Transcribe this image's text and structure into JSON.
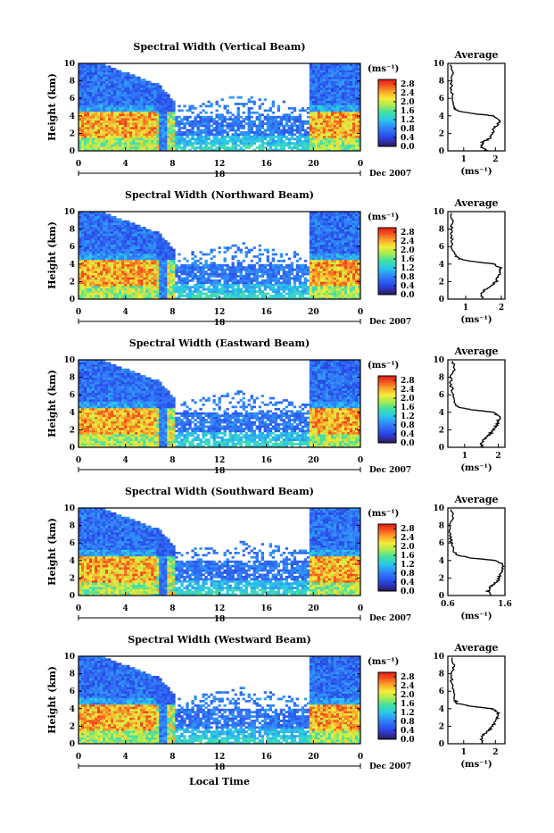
{
  "figure": {
    "xlabel": "Local Time",
    "colorbar_unit": "(ms⁻¹)",
    "average_title": "Average",
    "date_label": "Dec 2007",
    "day_marker": "18"
  },
  "chart_data": [
    {
      "type": "heatmap",
      "title": "Spectral Width (Vertical Beam)",
      "xlabel": "",
      "ylabel": "Height (km)",
      "x_ticks": [
        "0",
        "4",
        "8",
        "12",
        "16",
        "20",
        "0"
      ],
      "xlim": [
        0,
        24
      ],
      "y_ticks": [
        "0",
        "2",
        "4",
        "6",
        "8",
        "10"
      ],
      "ylim": [
        0,
        10
      ],
      "colorbar": {
        "ticks": [
          "0.0",
          "0.4",
          "0.8",
          "1.2",
          "1.6",
          "2.0",
          "2.4",
          "2.8"
        ],
        "range": [
          0,
          3.0
        ]
      },
      "profile": {
        "title": "Average",
        "xlabel": "(ms⁻¹)",
        "x_ticks": [
          "1",
          "2"
        ],
        "xlim": [
          0.5,
          2.3
        ],
        "y_ticks": [
          "0",
          "2",
          "4",
          "6",
          "8",
          "10"
        ],
        "heights": [
          0,
          0.5,
          1,
          1.5,
          2,
          2.5,
          3,
          3.5,
          4,
          4.3,
          4.6,
          5,
          6,
          7,
          8,
          9,
          10
        ],
        "values": [
          1.75,
          1.55,
          1.6,
          1.85,
          1.9,
          1.95,
          2.05,
          2.15,
          1.95,
          1.2,
          0.8,
          0.7,
          0.65,
          0.6,
          0.62,
          0.68,
          0.6
        ]
      }
    },
    {
      "type": "heatmap",
      "title": "Spectral Width (Northward Beam)",
      "xlabel": "",
      "ylabel": "Height (km)",
      "x_ticks": [
        "0",
        "4",
        "8",
        "12",
        "16",
        "20",
        "0"
      ],
      "xlim": [
        0,
        24
      ],
      "y_ticks": [
        "0",
        "2",
        "4",
        "6",
        "8",
        "10"
      ],
      "ylim": [
        0,
        10
      ],
      "colorbar": {
        "ticks": [
          "0.0",
          "0.4",
          "0.8",
          "1.2",
          "1.6",
          "2.0",
          "2.4",
          "2.8"
        ],
        "range": [
          0,
          3.0
        ]
      },
      "profile": {
        "title": "Average",
        "xlabel": "(ms⁻¹)",
        "x_ticks": [
          "1",
          "2"
        ],
        "xlim": [
          0.5,
          2.1
        ],
        "y_ticks": [
          "0",
          "2",
          "4",
          "6",
          "8",
          "10"
        ],
        "heights": [
          0,
          0.5,
          1,
          1.5,
          2,
          2.5,
          3,
          3.5,
          4,
          4.3,
          4.6,
          5,
          6,
          7,
          8,
          9,
          10
        ],
        "values": [
          1.5,
          1.45,
          1.5,
          1.7,
          1.85,
          1.9,
          1.95,
          2.0,
          1.8,
          1.2,
          0.8,
          0.7,
          0.62,
          0.6,
          0.6,
          0.62,
          0.6
        ]
      }
    },
    {
      "type": "heatmap",
      "title": "Spectral Width (Eastward Beam)",
      "xlabel": "",
      "ylabel": "Height (km)",
      "x_ticks": [
        "0",
        "4",
        "8",
        "12",
        "16",
        "20",
        "0"
      ],
      "xlim": [
        0,
        24
      ],
      "y_ticks": [
        "0",
        "2",
        "4",
        "6",
        "8",
        "10"
      ],
      "ylim": [
        0,
        10
      ],
      "colorbar": {
        "ticks": [
          "0.0",
          "0.4",
          "0.8",
          "1.2",
          "1.6",
          "2.0",
          "2.4",
          "2.8"
        ],
        "range": [
          0,
          3.0
        ]
      },
      "profile": {
        "title": "Average",
        "xlabel": "(ms⁻¹)",
        "x_ticks": [
          "1",
          "2"
        ],
        "xlim": [
          0.5,
          2.2
        ],
        "y_ticks": [
          "0",
          "2",
          "4",
          "6",
          "8",
          "10"
        ],
        "heights": [
          0,
          0.5,
          1,
          1.5,
          2,
          2.5,
          3,
          3.5,
          4,
          4.3,
          4.6,
          5,
          6,
          7,
          8,
          9,
          10
        ],
        "values": [
          1.55,
          1.5,
          1.6,
          1.75,
          1.85,
          1.95,
          2.0,
          2.05,
          1.85,
          1.2,
          0.8,
          0.7,
          0.65,
          0.6,
          0.6,
          0.7,
          0.62
        ]
      }
    },
    {
      "type": "heatmap",
      "title": "Spectral Width (Southward Beam)",
      "xlabel": "",
      "ylabel": "Height (km)",
      "x_ticks": [
        "0",
        "4",
        "8",
        "12",
        "16",
        "20",
        "0"
      ],
      "xlim": [
        0,
        24
      ],
      "y_ticks": [
        "0",
        "2",
        "4",
        "6",
        "8",
        "10"
      ],
      "ylim": [
        0,
        10
      ],
      "colorbar": {
        "ticks": [
          "0.0",
          "0.4",
          "0.8",
          "1.2",
          "1.6",
          "2.0",
          "2.4",
          "2.8"
        ],
        "range": [
          0,
          3.0
        ]
      },
      "profile": {
        "title": "Average",
        "xlabel": "(ms⁻¹)",
        "x_ticks": [
          "0.6",
          "1.6"
        ],
        "xlim": [
          0.6,
          1.6
        ],
        "y_ticks": [
          "0",
          "2",
          "4",
          "6",
          "8",
          "10"
        ],
        "heights": [
          0,
          0.5,
          1,
          1.5,
          2,
          2.5,
          3,
          3.5,
          4,
          4.3,
          4.6,
          5,
          6,
          7,
          8,
          9,
          10
        ],
        "values": [
          1.35,
          1.3,
          1.35,
          1.45,
          1.5,
          1.52,
          1.55,
          1.58,
          1.45,
          1.0,
          0.78,
          0.7,
          0.66,
          0.64,
          0.64,
          0.7,
          0.66
        ]
      }
    },
    {
      "type": "heatmap",
      "title": "Spectral Width (Westward Beam)",
      "xlabel": "Local Time",
      "ylabel": "Height (km)",
      "x_ticks": [
        "0",
        "4",
        "8",
        "12",
        "16",
        "20",
        "0"
      ],
      "xlim": [
        0,
        24
      ],
      "y_ticks": [
        "0",
        "2",
        "4",
        "6",
        "8",
        "10"
      ],
      "ylim": [
        0,
        10
      ],
      "colorbar": {
        "ticks": [
          "0.0",
          "0.4",
          "0.8",
          "1.2",
          "1.6",
          "2.0",
          "2.4",
          "2.8"
        ],
        "range": [
          0,
          3.0
        ]
      },
      "profile": {
        "title": "Average",
        "xlabel": "(ms⁻¹)",
        "x_ticks": [
          "1",
          "2"
        ],
        "xlim": [
          0.5,
          2.3
        ],
        "y_ticks": [
          "0",
          "2",
          "4",
          "6",
          "8",
          "10"
        ],
        "heights": [
          0,
          0.5,
          1,
          1.5,
          2,
          2.5,
          3,
          3.5,
          4,
          4.3,
          4.6,
          5,
          6,
          7,
          8,
          9,
          10
        ],
        "values": [
          1.6,
          1.55,
          1.6,
          1.8,
          1.9,
          2.0,
          2.05,
          2.1,
          1.9,
          1.2,
          0.8,
          0.72,
          0.66,
          0.62,
          0.62,
          0.7,
          0.62
        ]
      }
    }
  ]
}
